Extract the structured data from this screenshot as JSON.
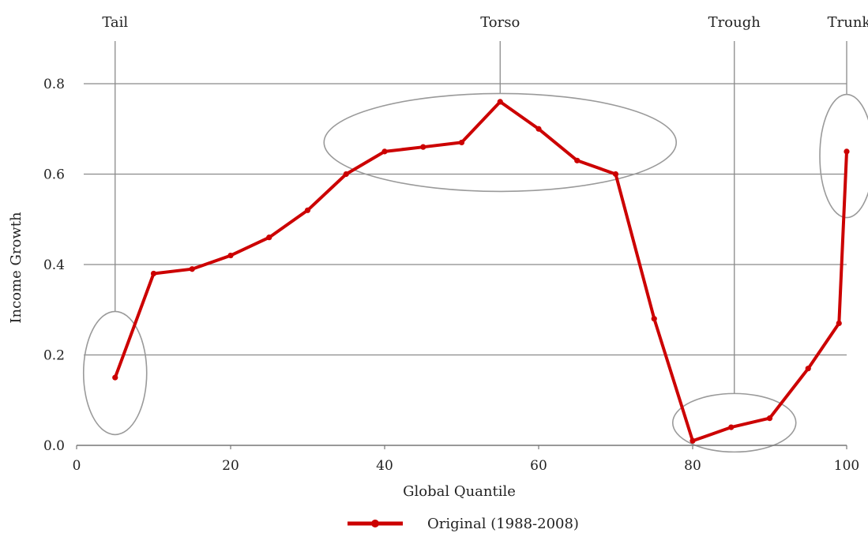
{
  "chart_data": {
    "type": "line",
    "title": "",
    "xlabel": "Global Quantile",
    "ylabel": "Income Growth",
    "xlim": [
      0,
      100
    ],
    "ylim": [
      0.0,
      0.8
    ],
    "x_ticks": [
      "0",
      "20",
      "40",
      "60",
      "80",
      "100"
    ],
    "y_ticks": [
      "0.0",
      "0.2",
      "0.4",
      "0.6",
      "0.8"
    ],
    "grid": "horizontal",
    "legend_position": "bottom-center",
    "series": [
      {
        "name": "Original (1988-2008)",
        "color": "#cc0000",
        "x": [
          5,
          10,
          15,
          20,
          25,
          30,
          35,
          40,
          45,
          50,
          55,
          60,
          65,
          70,
          75,
          80,
          85,
          90,
          95,
          99,
          100
        ],
        "y": [
          0.15,
          0.38,
          0.39,
          0.42,
          0.46,
          0.52,
          0.6,
          0.65,
          0.66,
          0.67,
          0.76,
          0.7,
          0.63,
          0.6,
          0.28,
          0.01,
          0.04,
          0.06,
          0.17,
          0.27,
          0.65
        ]
      }
    ],
    "annotations": [
      {
        "label": "Tail",
        "x": 5,
        "y": 0.16
      },
      {
        "label": "Torso",
        "x": 55,
        "y": 0.67
      },
      {
        "label": "Trough",
        "x": 85,
        "y": 0.05
      },
      {
        "label": "Trunk",
        "x": 100,
        "y": 0.64
      }
    ]
  }
}
